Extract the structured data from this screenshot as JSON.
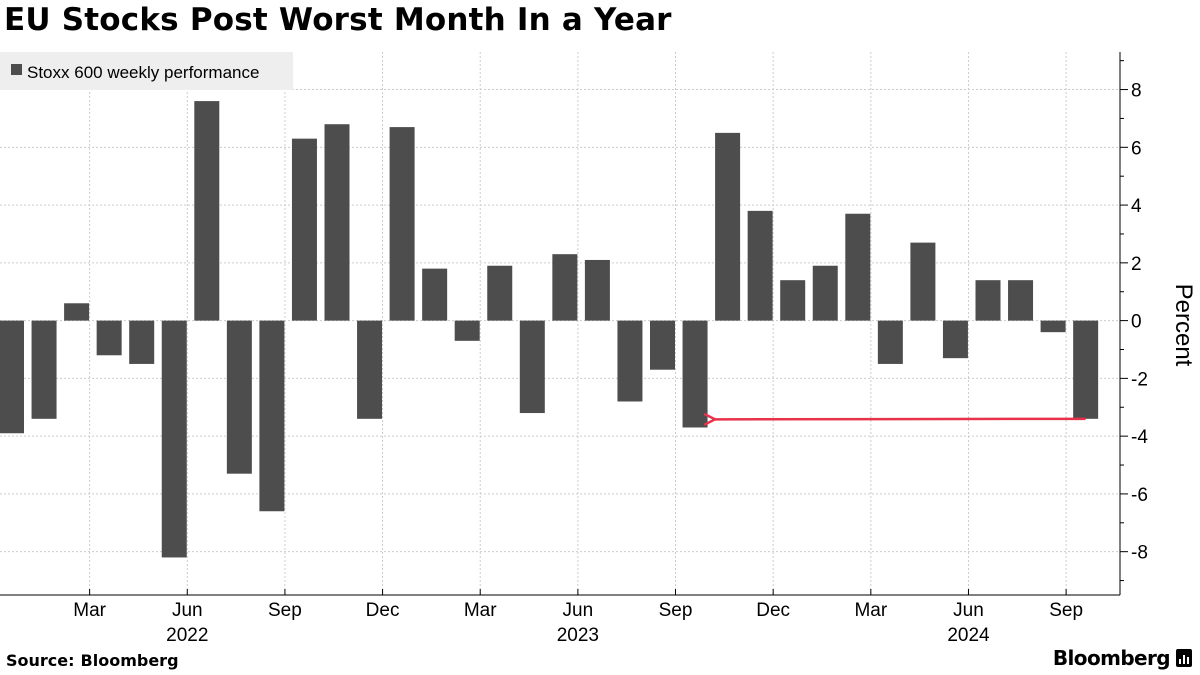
{
  "title": "EU Stocks Post Worst Month In a Year",
  "source": {
    "label": "Source:",
    "name": "Bloomberg"
  },
  "brand": {
    "name": "Bloomberg",
    "logo_icon": "bloomberg-terminal-icon"
  },
  "colors": {
    "bar": "#4d4d4d",
    "arrow": "#e8324a",
    "grid": "#cccccc",
    "legend_bg": "#eeeeee"
  },
  "chart_data": {
    "type": "bar",
    "legend": {
      "position": "top-left",
      "entries": [
        "Stoxx 600 weekly performance"
      ]
    },
    "ylabel": "Percent",
    "ylim": [
      -9.5,
      9.3
    ],
    "yticks": [
      8,
      6,
      4,
      2,
      0,
      -2,
      -4,
      -6,
      -8
    ],
    "grid": true,
    "x_ticks": [
      {
        "label": "Mar",
        "year": "",
        "pos": 2.4
      },
      {
        "label": "Jun",
        "year": "2022",
        "pos": 5.4
      },
      {
        "label": "Sep",
        "year": "",
        "pos": 8.4
      },
      {
        "label": "Dec",
        "year": "",
        "pos": 11.4
      },
      {
        "label": "Mar",
        "year": "",
        "pos": 14.4
      },
      {
        "label": "Jun",
        "year": "2023",
        "pos": 17.4
      },
      {
        "label": "Sep",
        "year": "",
        "pos": 20.4
      },
      {
        "label": "Dec",
        "year": "",
        "pos": 23.4
      },
      {
        "label": "Mar",
        "year": "",
        "pos": 26.4
      },
      {
        "label": "Jun",
        "year": "2024",
        "pos": 29.4
      },
      {
        "label": "Sep",
        "year": "",
        "pos": 32.4
      }
    ],
    "series": [
      {
        "name": "Stoxx 600 weekly performance",
        "values": [
          -3.9,
          -3.4,
          0.6,
          -1.2,
          -1.5,
          -8.2,
          7.6,
          -5.3,
          -6.6,
          6.3,
          6.8,
          -3.4,
          6.7,
          1.8,
          -0.7,
          1.9,
          -3.2,
          2.3,
          2.1,
          -2.8,
          -1.7,
          -3.7,
          6.5,
          3.8,
          1.4,
          1.9,
          3.7,
          -1.5,
          2.7,
          -1.3,
          1.4,
          1.4,
          -0.4,
          -3.4
        ]
      }
    ],
    "annotation": {
      "type": "arrow",
      "from_index": 33,
      "to_index": 21,
      "y_start": -3.4,
      "y_end": -3.4
    }
  }
}
